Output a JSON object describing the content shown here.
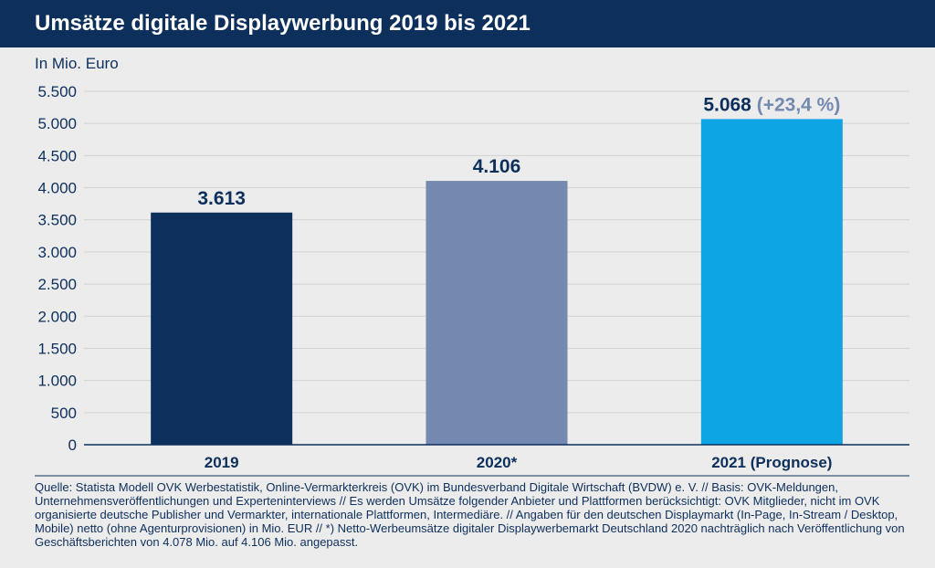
{
  "header": {
    "title": "Umsätze digitale Displaywerbung 2019 bis 2021"
  },
  "unit": "In Mio. Euro",
  "chart_data": {
    "type": "bar",
    "title": "Umsätze digitale Displaywerbung 2019 bis 2021",
    "ylabel": "In Mio. Euro",
    "xlabel": "",
    "ylim": [
      0,
      5500
    ],
    "yticks": [
      0,
      500,
      1000,
      1500,
      2000,
      2500,
      3000,
      3500,
      4000,
      4500,
      5000,
      5500
    ],
    "ytick_labels": [
      "0",
      "500",
      "1.000",
      "1.500",
      "2.000",
      "2.500",
      "3.000",
      "3.500",
      "4.000",
      "4.500",
      "5.000",
      "5.500"
    ],
    "grid": true,
    "categories": [
      "2019",
      "2020*",
      "2021 (Prognose)"
    ],
    "values": [
      3613,
      4106,
      5068
    ],
    "value_labels": [
      "3.613",
      "4.106",
      "5.068"
    ],
    "annotation": "(+23,4 %)",
    "colors": [
      "#0d2f5c",
      "#7389b0",
      "#0ea5e4"
    ],
    "label_color": "#0d2f5c",
    "annotation_color": "#7389b0"
  },
  "footnote": "Quelle: Statista Modell OVK Werbestatistik, Online-Vermarkterkreis (OVK) im Bundesverband Digitale Wirtschaft (BVDW) e. V. // Basis: OVK-Meldungen, Unternehmensveröffentlichungen und Experteninterviews // Es werden Umsätze folgender Anbieter und Plattformen berücksichtigt: OVK Mitglieder, nicht im OVK organisierte deutsche Publisher und Vermarkter, internationale Plattformen, Intermediäre. // Angaben für den deutschen Displaymarkt (In-Page, In-Stream / Desktop, Mobile) netto (ohne Agenturprovisionen) in Mio. EUR // *) Netto-Werbeumsätze digitaler Displaywerbemarkt Deutschland 2020 nachträglich nach Veröffentlichung von Geschäftsberichten von 4.078 Mio. auf 4.106 Mio. angepasst."
}
